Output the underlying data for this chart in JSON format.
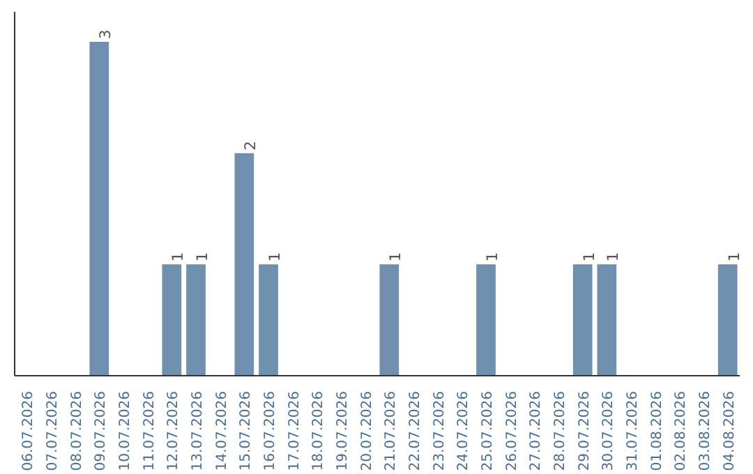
{
  "chart_data": {
    "type": "bar",
    "categories": [
      "06.07.2026",
      "07.07.2026",
      "08.07.2026",
      "09.07.2026",
      "10.07.2026",
      "11.07.2026",
      "12.07.2026",
      "13.07.2026",
      "14.07.2026",
      "15.07.2026",
      "16.07.2026",
      "17.07.2026",
      "18.07.2026",
      "19.07.2026",
      "20.07.2026",
      "21.07.2026",
      "22.07.2026",
      "23.07.2026",
      "24.07.2026",
      "25.07.2026",
      "26.07.2026",
      "27.07.2026",
      "28.07.2026",
      "29.07.2026",
      "30.07.2026",
      "31.07.2026",
      "01.08.2026",
      "02.08.2026",
      "03.08.2026",
      "04.08.2026"
    ],
    "values": [
      0,
      0,
      0,
      3,
      0,
      0,
      1,
      1,
      0,
      2,
      1,
      0,
      0,
      0,
      0,
      1,
      0,
      0,
      0,
      1,
      0,
      0,
      0,
      1,
      1,
      0,
      0,
      0,
      0,
      1
    ],
    "value_labels": [
      null,
      null,
      null,
      "3",
      null,
      null,
      "1",
      "1",
      null,
      "2",
      "1",
      null,
      null,
      null,
      null,
      "1",
      null,
      null,
      null,
      "1",
      null,
      null,
      null,
      "1",
      "1",
      null,
      null,
      null,
      null,
      "1"
    ],
    "color": "#6e8fad",
    "grid": false,
    "tick_labels": "x"
  }
}
